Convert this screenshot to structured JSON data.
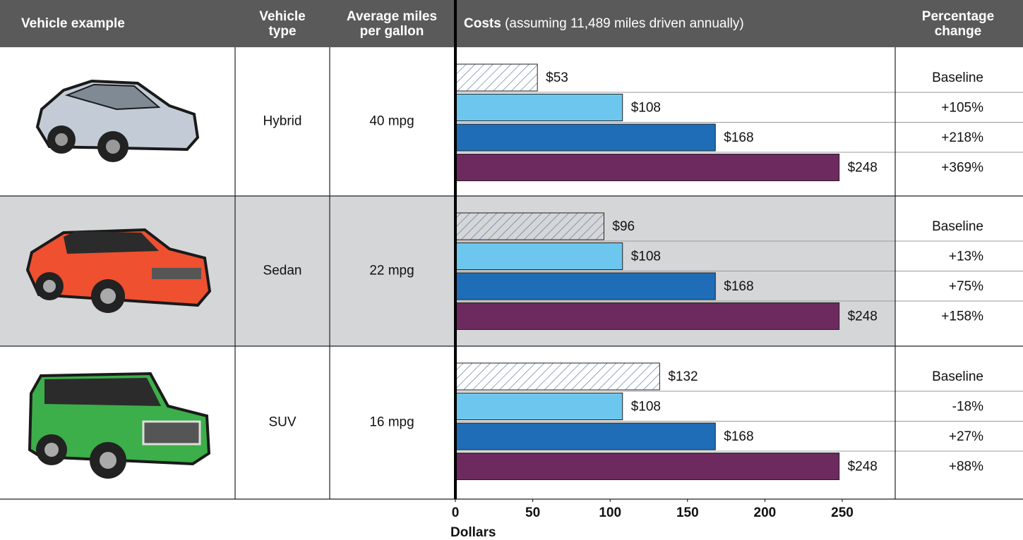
{
  "header": {
    "vehicle_example": "Vehicle example",
    "vehicle_type": "Vehicle type",
    "mpg": "Average miles per gallon",
    "costs": "Costs",
    "costs_note": "(assuming 11,489 miles driven annually)",
    "change": "Percentage change"
  },
  "chart_data": {
    "type": "bar",
    "orientation": "horizontal",
    "xlabel": "Dollars",
    "xlim": [
      0,
      250
    ],
    "xticks": [
      0,
      50,
      100,
      150,
      200,
      250
    ],
    "colors": [
      "#ffffff",
      "#6cc6ee",
      "#1f6db6",
      "#6c2a5f"
    ],
    "hatch_first": true,
    "hatch_color": "#4a6d94",
    "negative_color": "#b5404a",
    "rows": [
      {
        "vehicle_type": "Hybrid",
        "mpg": "40 mpg",
        "values": [
          53,
          108,
          168,
          248
        ],
        "value_labels": [
          "$53",
          "$108",
          "$168",
          "$248"
        ],
        "changes": [
          "Baseline",
          "+105%",
          "+218%",
          "+369%"
        ]
      },
      {
        "vehicle_type": "Sedan",
        "mpg": "22 mpg",
        "values": [
          96,
          108,
          168,
          248
        ],
        "value_labels": [
          "$96",
          "$108",
          "$168",
          "$248"
        ],
        "changes": [
          "Baseline",
          "+13%",
          "+75%",
          "+158%"
        ]
      },
      {
        "vehicle_type": "SUV",
        "mpg": "16 mpg",
        "values": [
          132,
          108,
          168,
          248
        ],
        "value_labels": [
          "$132",
          "$108",
          "$168",
          "$248"
        ],
        "changes": [
          "Baseline",
          "-18%",
          "+27%",
          "+88%"
        ]
      }
    ]
  }
}
